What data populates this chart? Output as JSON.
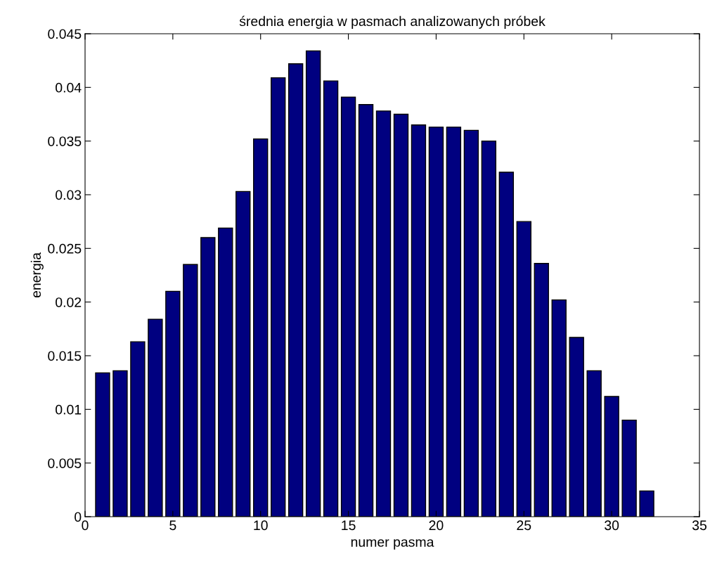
{
  "chart_data": {
    "type": "bar",
    "title": "średnia energia w pasmach analizowanych próbek",
    "xlabel": "numer pasma",
    "ylabel": "energia",
    "x": [
      1,
      2,
      3,
      4,
      5,
      6,
      7,
      8,
      9,
      10,
      11,
      12,
      13,
      14,
      15,
      16,
      17,
      18,
      19,
      20,
      21,
      22,
      23,
      24,
      25,
      26,
      27,
      28,
      29,
      30,
      31,
      32
    ],
    "values": [
      0.0134,
      0.0136,
      0.0163,
      0.0184,
      0.021,
      0.0235,
      0.026,
      0.0269,
      0.0303,
      0.0352,
      0.0409,
      0.0422,
      0.0434,
      0.0406,
      0.0391,
      0.0384,
      0.0378,
      0.0375,
      0.0365,
      0.0363,
      0.0363,
      0.036,
      0.035,
      0.0321,
      0.0275,
      0.0236,
      0.0202,
      0.0167,
      0.0136,
      0.0112,
      0.009,
      0.0024
    ],
    "color": "#000080",
    "xlim": [
      0,
      35
    ],
    "xticks": [
      0,
      5,
      10,
      15,
      20,
      25,
      30,
      35
    ],
    "ylim": [
      0,
      0.045
    ],
    "yticks": [
      0,
      0.005,
      0.01,
      0.015,
      0.02,
      0.025,
      0.03,
      0.035,
      0.04,
      0.045
    ],
    "grid": false,
    "legend": false
  }
}
